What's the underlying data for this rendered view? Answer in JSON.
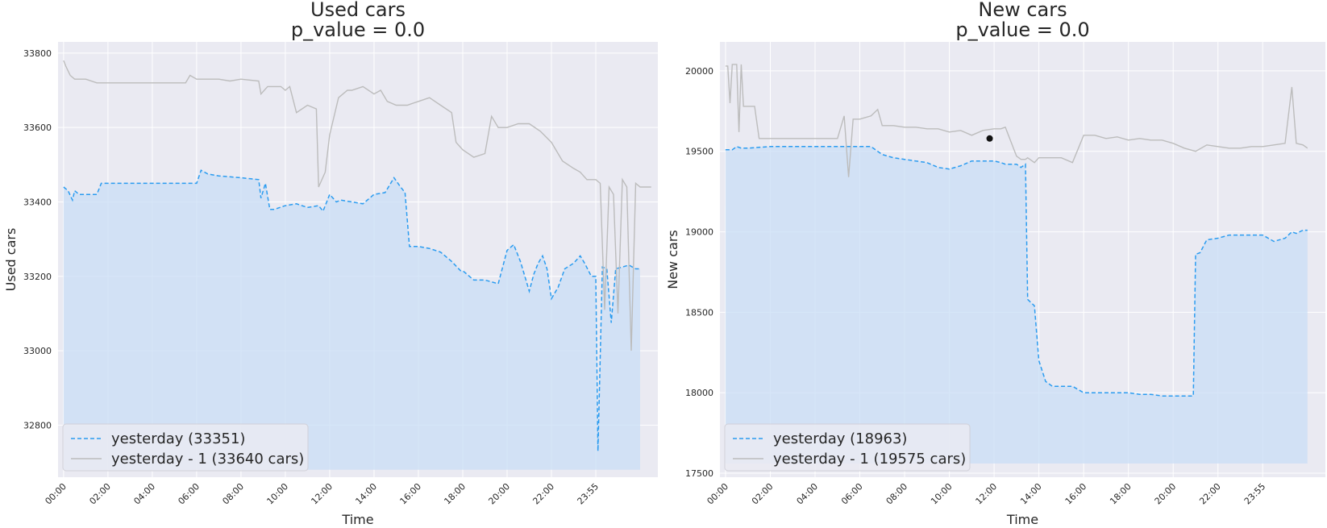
{
  "colors": {
    "background": "#eaeaf2",
    "grid": "#ffffff",
    "yesterday": "#2b9cf0",
    "yesterday_fill": "#c9ddf5",
    "yesterday_minus_1": "#bcbcbc",
    "marker": "#111111"
  },
  "chart_data": [
    {
      "type": "line",
      "title": "Used cars",
      "subtitle": "p_value = 0.0",
      "xlabel": "Time",
      "ylabel": "Used cars",
      "ylim": [
        32660,
        33830
      ],
      "xlim": [
        -0.25,
        26.8
      ],
      "yticks": [
        32800,
        33000,
        33200,
        33400,
        33600,
        33800
      ],
      "x_tick_labels": [
        "00:00",
        "02:00",
        "04:00",
        "06:00",
        "08:00",
        "10:00",
        "12:00",
        "14:00",
        "16:00",
        "18:00",
        "20:00",
        "22:00",
        "23:55"
      ],
      "fill_base": 32680,
      "legend_position": "lower-left",
      "legend": [
        "yesterday (33351)",
        "yesterday - 1 (33640 cars)"
      ],
      "series": [
        {
          "name": "yesterday (33351)",
          "style": "dashed",
          "filled": true,
          "x": [
            0,
            0.2,
            0.4,
            0.5,
            0.7,
            1,
            1.5,
            1.7,
            2,
            3,
            4,
            5,
            6,
            6.2,
            6.5,
            7,
            8,
            8.8,
            8.9,
            9.1,
            9.3,
            9.5,
            10,
            10.5,
            11,
            11.5,
            11.7,
            12,
            12.3,
            12.5,
            13,
            13.5,
            14,
            14.5,
            14.9,
            15.2,
            15.4,
            15.6,
            16,
            16.5,
            17,
            17.5,
            17.9,
            18,
            18.5,
            19,
            19.6,
            20,
            20.3,
            20.6,
            21,
            21.2,
            21.4,
            21.6,
            21.8,
            22,
            22.3,
            22.6,
            23,
            23.3,
            23.5,
            23.8,
            24,
            24.1,
            24.3,
            24.5,
            24.7,
            24.9,
            25.2,
            25.5,
            25.8,
            26
          ],
          "y": [
            33440,
            33430,
            33405,
            33430,
            33420,
            33420,
            33420,
            33450,
            33450,
            33450,
            33450,
            33450,
            33450,
            33485,
            33475,
            33470,
            33465,
            33460,
            33410,
            33450,
            33380,
            33380,
            33390,
            33395,
            33385,
            33390,
            33375,
            33420,
            33400,
            33405,
            33400,
            33395,
            33420,
            33425,
            33465,
            33440,
            33425,
            33280,
            33280,
            33275,
            33265,
            33240,
            33215,
            33215,
            33190,
            33190,
            33180,
            33270,
            33285,
            33240,
            33160,
            33205,
            33235,
            33255,
            33220,
            33140,
            33170,
            33220,
            33235,
            33255,
            33235,
            33200,
            33200,
            32730,
            33225,
            33220,
            33075,
            33220,
            33225,
            33230,
            33220,
            33220
          ]
        },
        {
          "name": "yesterday - 1 (33640 cars)",
          "style": "solid",
          "filled": false,
          "x": [
            0,
            0.1,
            0.3,
            0.5,
            1,
            1.5,
            2,
            3,
            4,
            5,
            5.5,
            5.7,
            6,
            7,
            7.5,
            8,
            8.8,
            8.9,
            9.2,
            9.8,
            10,
            10.2,
            10.5,
            11,
            11.4,
            11.5,
            11.8,
            12,
            12.4,
            12.8,
            13,
            13.5,
            14,
            14.3,
            14.6,
            15,
            15.5,
            16,
            16.5,
            17,
            17.5,
            17.7,
            18,
            18.5,
            19,
            19.3,
            19.6,
            20,
            20.5,
            21,
            21.5,
            22,
            22.5,
            23,
            23.3,
            23.6,
            24,
            24.2,
            24.4,
            24.6,
            24.8,
            25,
            25.2,
            25.4,
            25.6,
            25.8,
            26,
            26.5
          ],
          "y": [
            33780,
            33765,
            33740,
            33730,
            33730,
            33720,
            33720,
            33720,
            33720,
            33720,
            33720,
            33740,
            33730,
            33730,
            33725,
            33730,
            33725,
            33690,
            33710,
            33710,
            33700,
            33710,
            33640,
            33660,
            33650,
            33440,
            33480,
            33580,
            33680,
            33700,
            33700,
            33710,
            33690,
            33700,
            33670,
            33660,
            33660,
            33670,
            33680,
            33660,
            33640,
            33560,
            33540,
            33520,
            33530,
            33630,
            33600,
            33600,
            33610,
            33610,
            33590,
            33560,
            33510,
            33490,
            33480,
            33460,
            33460,
            33450,
            33110,
            33440,
            33420,
            33100,
            33460,
            33440,
            33000,
            33450,
            33440,
            33440
          ]
        }
      ]
    },
    {
      "type": "line",
      "title": "New cars",
      "subtitle": "p_value = 0.0",
      "xlabel": "Time",
      "ylabel": "New cars",
      "ylim": [
        17475,
        20180
      ],
      "xlim": [
        -0.25,
        26.8
      ],
      "yticks": [
        17500,
        18000,
        18500,
        19000,
        19500,
        20000
      ],
      "x_tick_labels": [
        "00:00",
        "02:00",
        "04:00",
        "06:00",
        "08:00",
        "10:00",
        "12:00",
        "14:00",
        "16:00",
        "18:00",
        "20:00",
        "22:00",
        "23:55"
      ],
      "fill_base": 17560,
      "legend_position": "lower-left",
      "legend": [
        "yesterday (18963)",
        "yesterday - 1 (19575 cars)"
      ],
      "marker": {
        "x": 11.8,
        "y": 19580
      },
      "series": [
        {
          "name": "yesterday (18963)",
          "style": "dashed",
          "filled": true,
          "x": [
            0,
            0.3,
            0.5,
            0.7,
            1,
            2,
            3,
            4,
            5,
            6,
            6.5,
            7,
            7.5,
            8,
            8.5,
            9,
            9.5,
            10,
            10.5,
            11,
            11.5,
            12,
            12.3,
            12.5,
            13,
            13.2,
            13.4,
            13.5,
            13.8,
            14,
            14.3,
            14.6,
            15,
            15.5,
            16,
            16.5,
            17,
            17.5,
            18,
            18.5,
            19,
            19.5,
            20,
            20.5,
            20.9,
            21,
            21.2,
            21.5,
            22,
            22.5,
            23,
            23.5,
            24,
            24.5,
            25,
            25.3,
            25.5,
            25.8,
            26
          ],
          "y": [
            19510,
            19510,
            19530,
            19520,
            19520,
            19530,
            19530,
            19530,
            19530,
            19530,
            19530,
            19480,
            19460,
            19450,
            19440,
            19430,
            19400,
            19390,
            19410,
            19440,
            19440,
            19440,
            19430,
            19420,
            19420,
            19400,
            19420,
            18580,
            18540,
            18200,
            18070,
            18040,
            18040,
            18040,
            18000,
            18000,
            18000,
            18000,
            18000,
            17990,
            17990,
            17980,
            17980,
            17980,
            17980,
            18860,
            18870,
            18950,
            18960,
            18980,
            18980,
            18980,
            18980,
            18940,
            18960,
            19000,
            18990,
            19010,
            19010
          ]
        },
        {
          "name": "yesterday - 1 (19575 cars)",
          "style": "solid",
          "filled": false,
          "x": [
            0,
            0.1,
            0.2,
            0.3,
            0.5,
            0.6,
            0.7,
            0.8,
            1,
            1.3,
            1.5,
            2,
            3,
            4,
            5,
            5.3,
            5.5,
            5.7,
            6,
            6.5,
            6.8,
            7,
            7.5,
            8,
            8.5,
            9,
            9.5,
            10,
            10.5,
            11,
            11.5,
            12,
            12.3,
            12.5,
            13,
            13.2,
            13.4,
            13.5,
            13.8,
            14,
            14.5,
            15,
            15.5,
            16,
            16.5,
            17,
            17.5,
            18,
            18.5,
            19,
            19.5,
            20,
            20.5,
            21,
            21.5,
            22,
            22.5,
            23,
            23.5,
            24,
            24.5,
            25,
            25.3,
            25.5,
            25.8,
            26
          ],
          "y": [
            20030,
            20030,
            19800,
            20040,
            20040,
            19620,
            20040,
            19780,
            19780,
            19780,
            19580,
            19580,
            19580,
            19580,
            19580,
            19720,
            19340,
            19700,
            19700,
            19720,
            19760,
            19660,
            19660,
            19650,
            19650,
            19640,
            19640,
            19620,
            19630,
            19600,
            19630,
            19640,
            19640,
            19650,
            19470,
            19450,
            19450,
            19460,
            19430,
            19460,
            19460,
            19460,
            19430,
            19600,
            19600,
            19580,
            19590,
            19570,
            19580,
            19570,
            19570,
            19550,
            19520,
            19500,
            19540,
            19530,
            19520,
            19520,
            19530,
            19530,
            19540,
            19550,
            19900,
            19550,
            19540,
            19520
          ]
        }
      ]
    }
  ]
}
